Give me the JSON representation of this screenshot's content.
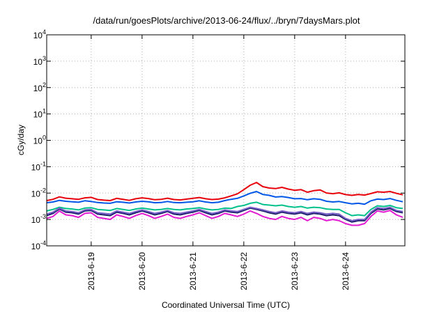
{
  "chart_data": {
    "type": "line",
    "title": "/data/run/goesPlots/archive/2013-06-24/flux/../bryn/7daysMars.plot",
    "xlabel": "Coordinated Universal Time (UTC)",
    "ylabel": "cGy/day",
    "y_scale": "log",
    "ylim": [
      0.0001,
      10000
    ],
    "xlim": [
      "2013-06-18T03:00",
      "2013-06-25T04:00"
    ],
    "grid": true,
    "legend": "none",
    "y_ticks": [
      {
        "value": 0.0001,
        "base": "10",
        "exp": "-4"
      },
      {
        "value": 0.001,
        "base": "10",
        "exp": "-3"
      },
      {
        "value": 0.01,
        "base": "10",
        "exp": "-2"
      },
      {
        "value": 0.1,
        "base": "10",
        "exp": "-1"
      },
      {
        "value": 1,
        "base": "10",
        "exp": "0"
      },
      {
        "value": 10,
        "base": "10",
        "exp": "1"
      },
      {
        "value": 100,
        "base": "10",
        "exp": "2"
      },
      {
        "value": 1000,
        "base": "10",
        "exp": "3"
      },
      {
        "value": 10000,
        "base": "10",
        "exp": "4"
      }
    ],
    "x_ticks": [
      {
        "value": "2013-06-19",
        "label": "2013-6-19"
      },
      {
        "value": "2013-06-20",
        "label": "2013-6-20"
      },
      {
        "value": "2013-06-21",
        "label": "2013-6-21"
      },
      {
        "value": "2013-06-22",
        "label": "2013-6-22"
      },
      {
        "value": "2013-06-23",
        "label": "2013-6-23"
      },
      {
        "value": "2013-06-24",
        "label": "2013-6-24"
      }
    ],
    "x": [
      "2013-06-18T03:00",
      "2013-06-18T06:00",
      "2013-06-18T09:00",
      "2013-06-18T12:00",
      "2013-06-18T15:00",
      "2013-06-18T18:00",
      "2013-06-18T21:00",
      "2013-06-19T00:00",
      "2013-06-19T03:00",
      "2013-06-19T06:00",
      "2013-06-19T09:00",
      "2013-06-19T12:00",
      "2013-06-19T15:00",
      "2013-06-19T18:00",
      "2013-06-19T21:00",
      "2013-06-20T00:00",
      "2013-06-20T03:00",
      "2013-06-20T06:00",
      "2013-06-20T09:00",
      "2013-06-20T12:00",
      "2013-06-20T15:00",
      "2013-06-20T18:00",
      "2013-06-20T21:00",
      "2013-06-21T00:00",
      "2013-06-21T03:00",
      "2013-06-21T06:00",
      "2013-06-21T09:00",
      "2013-06-21T12:00",
      "2013-06-21T15:00",
      "2013-06-21T18:00",
      "2013-06-21T21:00",
      "2013-06-22T00:00",
      "2013-06-22T03:00",
      "2013-06-22T06:00",
      "2013-06-22T09:00",
      "2013-06-22T12:00",
      "2013-06-22T15:00",
      "2013-06-22T18:00",
      "2013-06-22T21:00",
      "2013-06-23T00:00",
      "2013-06-23T03:00",
      "2013-06-23T06:00",
      "2013-06-23T09:00",
      "2013-06-23T12:00",
      "2013-06-23T15:00",
      "2013-06-23T18:00",
      "2013-06-23T21:00",
      "2013-06-24T00:00",
      "2013-06-24T03:00",
      "2013-06-24T06:00",
      "2013-06-24T09:00",
      "2013-06-24T12:00",
      "2013-06-24T15:00",
      "2013-06-24T18:00",
      "2013-06-24T21:00",
      "2013-06-25T00:00",
      "2013-06-25T03:00"
    ],
    "series": [
      {
        "color": "#e8000b",
        "values": [
          0.0052,
          0.0058,
          0.0072,
          0.0064,
          0.0061,
          0.0058,
          0.0066,
          0.0069,
          0.0057,
          0.0054,
          0.0052,
          0.0063,
          0.0058,
          0.0053,
          0.0061,
          0.0066,
          0.0062,
          0.0056,
          0.0058,
          0.0064,
          0.0057,
          0.0055,
          0.0059,
          0.0063,
          0.0068,
          0.0061,
          0.0057,
          0.0059,
          0.0066,
          0.0078,
          0.0094,
          0.0135,
          0.0198,
          0.0252,
          0.0176,
          0.0155,
          0.0148,
          0.0165,
          0.0142,
          0.0128,
          0.0135,
          0.0108,
          0.0123,
          0.0132,
          0.0101,
          0.0095,
          0.0102,
          0.0088,
          0.0082,
          0.0089,
          0.0084,
          0.0096,
          0.0112,
          0.0108,
          0.0115,
          0.0098,
          0.0086
        ]
      },
      {
        "color": "#0057e7",
        "values": [
          0.0043,
          0.0046,
          0.0053,
          0.0049,
          0.0047,
          0.0045,
          0.0051,
          0.0048,
          0.0044,
          0.0042,
          0.0041,
          0.0047,
          0.0045,
          0.0042,
          0.0046,
          0.0049,
          0.0047,
          0.0043,
          0.0044,
          0.0048,
          0.0044,
          0.0043,
          0.0045,
          0.0047,
          0.0051,
          0.0046,
          0.0043,
          0.0045,
          0.0052,
          0.0058,
          0.0063,
          0.0078,
          0.0098,
          0.0115,
          0.0089,
          0.0082,
          0.0071,
          0.0074,
          0.0068,
          0.0061,
          0.0062,
          0.0056,
          0.0061,
          0.0058,
          0.0049,
          0.0046,
          0.0048,
          0.0043,
          0.0039,
          0.0041,
          0.0038,
          0.0051,
          0.0059,
          0.0057,
          0.0062,
          0.0053,
          0.0047
        ]
      },
      {
        "color": "#00c08b",
        "values": [
          0.0021,
          0.0024,
          0.0029,
          0.0026,
          0.0025,
          0.0023,
          0.0027,
          0.0028,
          0.0024,
          0.0023,
          0.0022,
          0.0026,
          0.0024,
          0.0022,
          0.0025,
          0.0027,
          0.0025,
          0.0023,
          0.0024,
          0.0026,
          0.0024,
          0.0023,
          0.0025,
          0.0026,
          0.0028,
          0.0025,
          0.0023,
          0.0024,
          0.0027,
          0.0026,
          0.0031,
          0.0034,
          0.0041,
          0.0045,
          0.0037,
          0.0035,
          0.0033,
          0.0035,
          0.0031,
          0.0029,
          0.0031,
          0.0027,
          0.0029,
          0.0028,
          0.0025,
          0.0024,
          0.0024,
          0.0018,
          0.0014,
          0.0015,
          0.0014,
          0.0024,
          0.0033,
          0.0031,
          0.0034,
          0.0028,
          0.0026
        ]
      },
      {
        "color": "#1b1f6b",
        "values": [
          0.0014,
          0.0017,
          0.0025,
          0.0019,
          0.0018,
          0.0016,
          0.0021,
          0.0022,
          0.0016,
          0.0015,
          0.0014,
          0.0019,
          0.0017,
          0.0015,
          0.0018,
          0.0021,
          0.0018,
          0.0015,
          0.0017,
          0.002,
          0.0016,
          0.0015,
          0.0017,
          0.0019,
          0.0022,
          0.0018,
          0.0015,
          0.0017,
          0.0021,
          0.0019,
          0.0018,
          0.0022,
          0.0027,
          0.0024,
          0.0021,
          0.0018,
          0.0016,
          0.0019,
          0.0017,
          0.0016,
          0.0018,
          0.0015,
          0.0017,
          0.0016,
          0.0014,
          0.0015,
          0.0014,
          0.001,
          0.0008,
          0.0009,
          0.0009,
          0.0017,
          0.0025,
          0.0023,
          0.0026,
          0.002,
          0.0018
        ]
      },
      {
        "color": "#7a5fc9",
        "values": [
          0.0016,
          0.0019,
          0.0027,
          0.0021,
          0.002,
          0.0018,
          0.0023,
          0.0024,
          0.0018,
          0.0017,
          0.0016,
          0.0021,
          0.0019,
          0.0017,
          0.002,
          0.0023,
          0.002,
          0.0017,
          0.0019,
          0.0022,
          0.0018,
          0.0017,
          0.0019,
          0.0021,
          0.0024,
          0.002,
          0.0017,
          0.0019,
          0.0023,
          0.0021,
          0.002,
          0.0024,
          0.0029,
          0.0026,
          0.0023,
          0.002,
          0.0018,
          0.0021,
          0.0019,
          0.0018,
          0.002,
          0.0017,
          0.0019,
          0.0018,
          0.0016,
          0.0017,
          0.0016,
          0.0011,
          0.0009,
          0.001,
          0.001,
          0.0019,
          0.0028,
          0.0026,
          0.0029,
          0.0022,
          0.002
        ]
      },
      {
        "color": "#e31bd2",
        "values": [
          0.0011,
          0.0013,
          0.0021,
          0.0015,
          0.0014,
          0.0012,
          0.0017,
          0.0018,
          0.0012,
          0.0011,
          0.001,
          0.0015,
          0.0013,
          0.0011,
          0.0014,
          0.0017,
          0.0014,
          0.0011,
          0.0013,
          0.0016,
          0.0012,
          0.0011,
          0.0013,
          0.0015,
          0.0018,
          0.0014,
          0.0011,
          0.0013,
          0.0017,
          0.0015,
          0.0013,
          0.0016,
          0.0021,
          0.0017,
          0.0013,
          0.0011,
          0.001,
          0.0013,
          0.0011,
          0.001,
          0.0012,
          0.0009,
          0.0012,
          0.0011,
          0.0009,
          0.001,
          0.0009,
          0.0007,
          0.0006,
          0.0006,
          0.0007,
          0.0013,
          0.0021,
          0.0019,
          0.0022,
          0.0015,
          0.0012
        ]
      }
    ]
  }
}
